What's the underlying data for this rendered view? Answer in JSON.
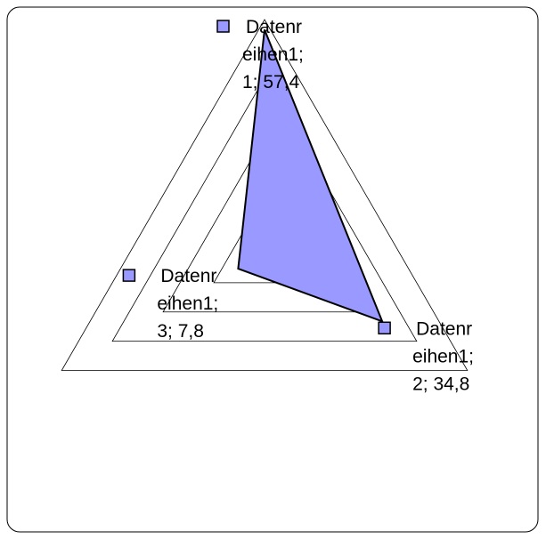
{
  "chart_data": {
    "type": "radar",
    "series": [
      {
        "name": "Datenreihen1",
        "color": "#9999ff",
        "values": [
          57.4,
          34.8,
          7.8
        ],
        "value_labels": [
          "Datenreihen1; 1; 57,4",
          "Datenreihen1; 2; 34,8",
          "Datenreihen1; 3; 7,8"
        ]
      }
    ],
    "ylim": [
      0,
      60
    ],
    "yticks": [
      0,
      15,
      30,
      45,
      60
    ],
    "grid": true
  }
}
